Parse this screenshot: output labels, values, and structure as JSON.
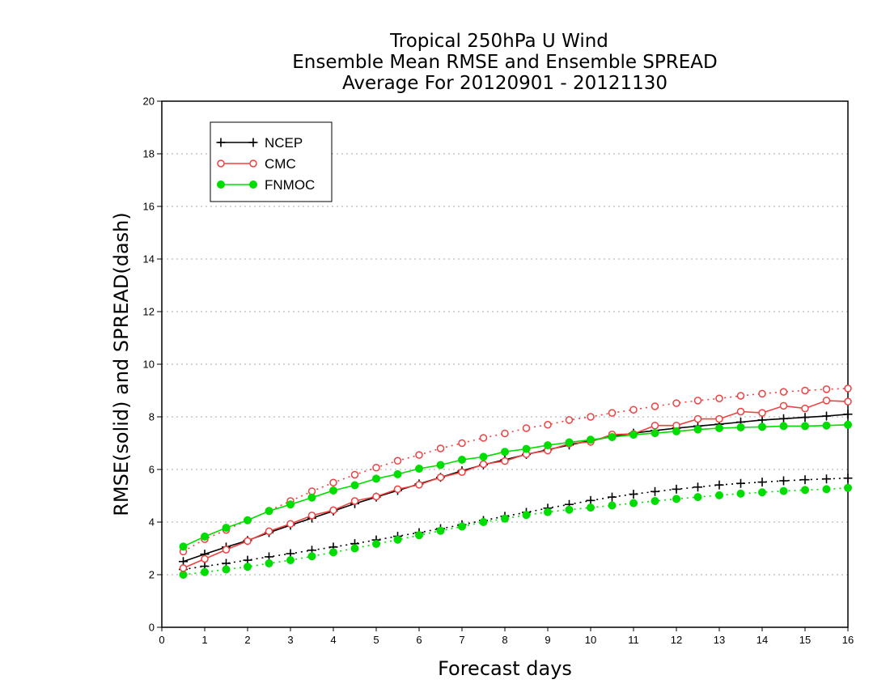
{
  "chart_data": {
    "type": "line",
    "title": [
      "Tropical 250hPa U Wind",
      "Ensemble Mean RMSE and Ensemble SPREAD",
      "Average For 20120901 - 20121130"
    ],
    "xlabel": "Forecast days",
    "ylabel": "RMSE(solid) and SPREAD(dash)",
    "xlim": [
      0,
      16
    ],
    "ylim": [
      0,
      20
    ],
    "xticks": [
      "0",
      "1",
      "2",
      "3",
      "4",
      "5",
      "6",
      "7",
      "8",
      "9",
      "10",
      "11",
      "12",
      "13",
      "14",
      "15",
      "16"
    ],
    "yticks": [
      "0",
      "2",
      "4",
      "6",
      "8",
      "10",
      "12",
      "14",
      "16",
      "18",
      "20"
    ],
    "grid": "horizontal dotted",
    "legend_position": "top-left",
    "x": [
      0.5,
      1,
      1.5,
      2,
      2.5,
      3,
      3.5,
      4,
      4.5,
      5,
      5.5,
      6,
      6.5,
      7,
      7.5,
      8,
      8.5,
      9,
      9.5,
      10,
      10.5,
      11,
      11.5,
      12,
      12.5,
      13,
      13.5,
      14,
      14.5,
      15,
      15.5,
      16
    ],
    "series": [
      {
        "name": "NCEP",
        "color": "#000000",
        "marker": "plus",
        "rmse": [
          2.5,
          2.78,
          3.05,
          3.3,
          3.6,
          3.88,
          4.15,
          4.42,
          4.7,
          4.95,
          5.2,
          5.45,
          5.7,
          5.95,
          6.18,
          6.37,
          6.57,
          6.75,
          6.93,
          7.1,
          7.25,
          7.38,
          7.48,
          7.57,
          7.65,
          7.72,
          7.8,
          7.88,
          7.93,
          7.98,
          8.03,
          8.1
        ],
        "spread": [
          2.2,
          2.32,
          2.43,
          2.55,
          2.68,
          2.8,
          2.93,
          3.05,
          3.18,
          3.32,
          3.46,
          3.6,
          3.75,
          3.9,
          4.06,
          4.22,
          4.37,
          4.53,
          4.67,
          4.82,
          4.95,
          5.06,
          5.16,
          5.25,
          5.33,
          5.41,
          5.47,
          5.52,
          5.57,
          5.61,
          5.64,
          5.67
        ]
      },
      {
        "name": "CMC",
        "color": "#f04040",
        "marker": "circle",
        "rmse": [
          2.25,
          2.6,
          2.95,
          3.28,
          3.65,
          3.93,
          4.25,
          4.45,
          4.8,
          4.97,
          5.25,
          5.42,
          5.7,
          5.9,
          6.2,
          6.32,
          6.58,
          6.72,
          6.98,
          7.05,
          7.33,
          7.35,
          7.67,
          7.67,
          7.92,
          7.92,
          8.2,
          8.15,
          8.42,
          8.32,
          8.62,
          8.58
        ],
        "spread": [
          2.88,
          3.35,
          3.7,
          4.07,
          4.43,
          4.8,
          5.17,
          5.5,
          5.8,
          6.07,
          6.33,
          6.55,
          6.8,
          7.0,
          7.2,
          7.37,
          7.57,
          7.7,
          7.88,
          8.0,
          8.15,
          8.27,
          8.4,
          8.52,
          8.62,
          8.7,
          8.8,
          8.88,
          8.95,
          9.0,
          9.05,
          9.08
        ]
      },
      {
        "name": "FNMOC",
        "color": "#00dd00",
        "marker": "dot",
        "rmse": [
          3.07,
          3.45,
          3.78,
          4.07,
          4.42,
          4.67,
          4.93,
          5.2,
          5.4,
          5.65,
          5.82,
          6.03,
          6.17,
          6.37,
          6.48,
          6.67,
          6.78,
          6.92,
          7.03,
          7.13,
          7.23,
          7.32,
          7.38,
          7.45,
          7.52,
          7.57,
          7.6,
          7.62,
          7.65,
          7.65,
          7.67,
          7.7
        ],
        "spread": [
          2.0,
          2.1,
          2.2,
          2.3,
          2.43,
          2.55,
          2.7,
          2.85,
          3.0,
          3.17,
          3.33,
          3.5,
          3.67,
          3.83,
          4.0,
          4.13,
          4.27,
          4.38,
          4.47,
          4.55,
          4.63,
          4.72,
          4.8,
          4.88,
          4.95,
          5.02,
          5.08,
          5.13,
          5.18,
          5.22,
          5.25,
          5.3
        ]
      }
    ]
  }
}
